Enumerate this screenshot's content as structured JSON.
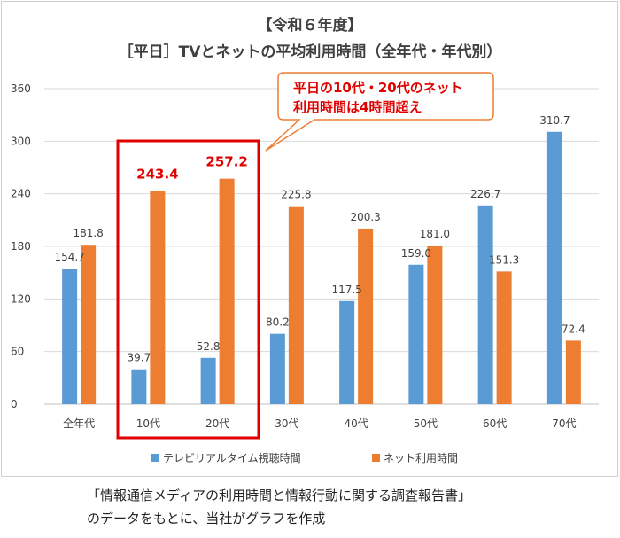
{
  "titles": {
    "line1": "【令和６年度】",
    "line2": "［平日］TVとネットの平均利用時間（全年代・年代別）"
  },
  "callout": {
    "line1": "平日の10代・20代のネット",
    "line2": "利用時間は4時間超え"
  },
  "caption": {
    "line1": "「情報通信メディアの利用時間と情報行動に関する調査報告書」",
    "line2": "のデータをもとに、当社がグラフを作成"
  },
  "colors": {
    "tv": "#5b9bd5",
    "net": "#ed7d31",
    "highlight": "#e00000",
    "grid": "#d9d9d9"
  },
  "chart_data": {
    "type": "bar",
    "categories": [
      "全年代",
      "10代",
      "20代",
      "30代",
      "40代",
      "50代",
      "60代",
      "70代"
    ],
    "series": [
      {
        "name": "テレビリアルタイム視聴時間",
        "values": [
          154.7,
          39.7,
          52.8,
          80.2,
          117.5,
          159.0,
          226.7,
          310.7
        ],
        "labels": [
          "154.7",
          "39.7",
          "52.8",
          "80.2",
          "117.5",
          "159.0",
          "226.7",
          "310.7"
        ]
      },
      {
        "name": "ネット利用時間",
        "values": [
          181.8,
          243.4,
          257.2,
          225.8,
          200.3,
          181.0,
          151.3,
          72.4
        ],
        "labels": [
          "181.8",
          "243.4",
          "257.2",
          "225.8",
          "200.3",
          "181.0",
          "151.3",
          "72.4"
        ]
      }
    ],
    "ylim": [
      0,
      360
    ],
    "yticks": [
      0,
      60,
      120,
      180,
      240,
      300,
      360
    ],
    "grid": true,
    "legend": "bottom",
    "highlighted_categories": [
      "10代",
      "20代"
    ]
  }
}
